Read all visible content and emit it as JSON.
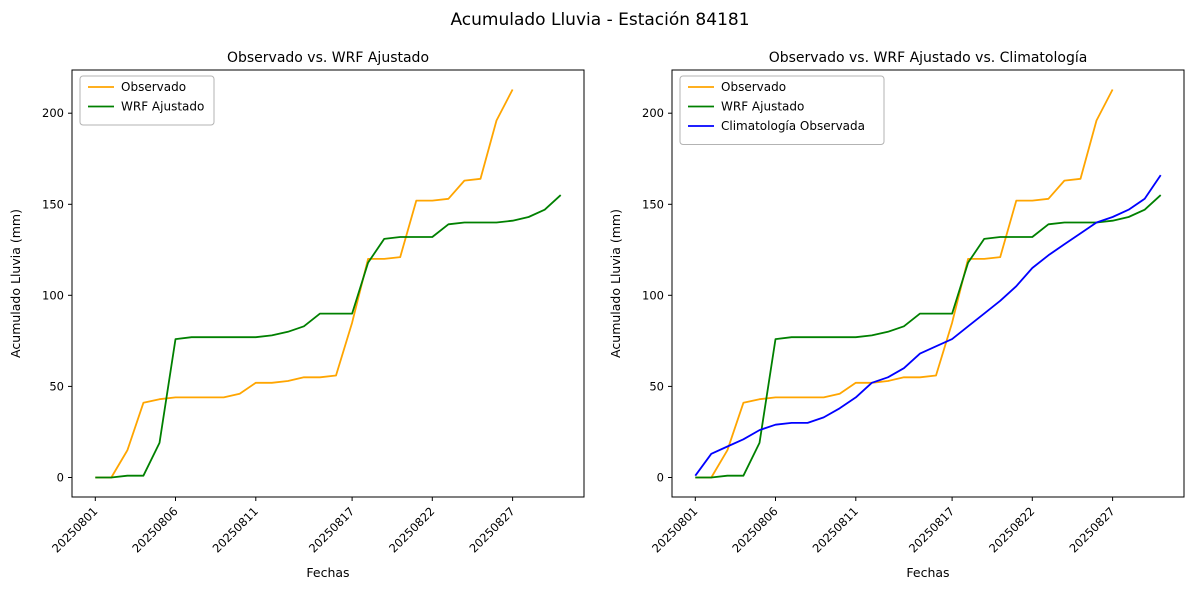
{
  "title": "Acumulado Lluvia - Estación 84181",
  "chart_data": [
    {
      "type": "line",
      "title": "Observado vs. WRF Ajustado",
      "xlabel": "Fechas",
      "ylabel": "Acumulado Lluvia (mm)",
      "x_tick_labels": [
        "20250801",
        "20250806",
        "20250811",
        "20250817",
        "20250822",
        "20250827"
      ],
      "x_tick_positions": [
        0,
        5,
        10,
        16,
        21,
        26
      ],
      "y_ticks": [
        0,
        50,
        100,
        150,
        200
      ],
      "ylim": [
        -10.7,
        223.7
      ],
      "xlim": [
        -1.45,
        30.45
      ],
      "grid": false,
      "legend_position": "upper left",
      "series": [
        {
          "name": "Observado",
          "color": "#ffa500",
          "values": [
            0,
            0,
            15,
            41,
            43,
            44,
            44,
            44,
            44,
            46,
            52,
            52,
            53,
            55,
            55,
            56,
            85,
            120,
            120,
            121,
            152,
            152,
            153,
            163,
            164,
            196,
            213
          ]
        },
        {
          "name": "WRF Ajustado",
          "color": "#008000",
          "values": [
            0,
            0,
            1,
            1,
            19,
            76,
            77,
            77,
            77,
            77,
            77,
            78,
            80,
            83,
            90,
            90,
            90,
            118,
            131,
            132,
            132,
            132,
            139,
            140,
            140,
            140,
            141,
            143,
            147,
            155
          ]
        }
      ]
    },
    {
      "type": "line",
      "title": "Observado vs. WRF Ajustado vs. Climatología",
      "xlabel": "Fechas",
      "ylabel": "Acumulado Lluvia (mm)",
      "x_tick_labels": [
        "20250801",
        "20250806",
        "20250811",
        "20250817",
        "20250822",
        "20250827"
      ],
      "x_tick_positions": [
        0,
        5,
        10,
        16,
        21,
        26
      ],
      "y_ticks": [
        0,
        50,
        100,
        150,
        200
      ],
      "ylim": [
        -10.7,
        223.7
      ],
      "xlim": [
        -1.45,
        30.45
      ],
      "grid": false,
      "legend_position": "upper left",
      "series": [
        {
          "name": "Observado",
          "color": "#ffa500",
          "values": [
            0,
            0,
            15,
            41,
            43,
            44,
            44,
            44,
            44,
            46,
            52,
            52,
            53,
            55,
            55,
            56,
            85,
            120,
            120,
            121,
            152,
            152,
            153,
            163,
            164,
            196,
            213
          ]
        },
        {
          "name": "WRF Ajustado",
          "color": "#008000",
          "values": [
            0,
            0,
            1,
            1,
            19,
            76,
            77,
            77,
            77,
            77,
            77,
            78,
            80,
            83,
            90,
            90,
            90,
            118,
            131,
            132,
            132,
            132,
            139,
            140,
            140,
            140,
            141,
            143,
            147,
            155
          ]
        },
        {
          "name": "Climatología Observada",
          "color": "#0000ff",
          "values": [
            1,
            13,
            17,
            21,
            26,
            29,
            30,
            30,
            33,
            38,
            44,
            52,
            55,
            60,
            68,
            72,
            76,
            83,
            90,
            97,
            105,
            115,
            122,
            128,
            134,
            140,
            143,
            147,
            153,
            166
          ]
        }
      ]
    }
  ]
}
